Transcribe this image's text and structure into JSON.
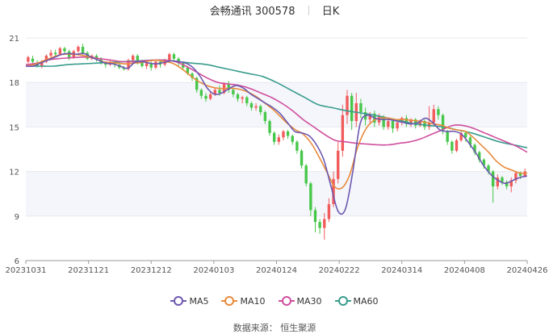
{
  "header": {
    "stock_title": "会畅通讯 300578",
    "period_label": "日K"
  },
  "footer": {
    "source": "数据来源：  恒生聚源"
  },
  "chart_data": {
    "type": "candlestick",
    "y_ticks": [
      6,
      9,
      12,
      15,
      18,
      21
    ],
    "ylim": [
      6,
      21
    ],
    "x_ticks": [
      "20231031",
      "20231121",
      "20231212",
      "20240103",
      "20240124",
      "20240222",
      "20240314",
      "20240408",
      "20240426"
    ],
    "grid": "horizontal",
    "up_color": "#f15b5b",
    "down_color": "#47c74a",
    "legend_placement": "bottom-center",
    "series": [
      {
        "name": "MA5",
        "color": "#6d58b0",
        "values": [
          19.1,
          19.1,
          19.3,
          19.5,
          19.7,
          19.9,
          19.95,
          19.9,
          19.95,
          19.7,
          19.5,
          19.3,
          19.25,
          19.1,
          18.95,
          19.35,
          19.4,
          19.3,
          19.25,
          19.35,
          19.45,
          19.4,
          19.3,
          19.0,
          18.4,
          17.6,
          17.2,
          17.3,
          17.6,
          17.8,
          17.6,
          17.2,
          16.9,
          16.6,
          16.3,
          15.9,
          15.3,
          14.7,
          14.6,
          14.4,
          13.8,
          12.8,
          11.0,
          9.3,
          9.5,
          12.0,
          15.2,
          15.8,
          15.6,
          15.5,
          15.5,
          15.4,
          15.3,
          15.2,
          15.3,
          15.6,
          15.3,
          14.8,
          14.7,
          14.7,
          14.5,
          13.9,
          13.2,
          12.4,
          11.8,
          11.4,
          11.2,
          11.4,
          11.6,
          11.7
        ]
      },
      {
        "name": "MA10",
        "color": "#e88b3c",
        "values": [
          19.1,
          19.2,
          19.4,
          19.6,
          19.8,
          19.9,
          19.9,
          19.85,
          19.75,
          19.6,
          19.4,
          19.35,
          19.3,
          19.25,
          19.3,
          19.35,
          19.45,
          19.5,
          19.4,
          19.3,
          19.0,
          18.6,
          18.2,
          17.9,
          17.7,
          17.6,
          17.6,
          17.6,
          17.5,
          17.3,
          17.0,
          16.6,
          16.2,
          15.7,
          15.2,
          14.8,
          14.5,
          13.9,
          13.0,
          12.0,
          11.0,
          10.9,
          11.8,
          13.6,
          14.8,
          15.4,
          15.6,
          15.6,
          15.5,
          15.5,
          15.45,
          15.4,
          15.3,
          15.2,
          15.1,
          14.9,
          14.8,
          14.7,
          14.3,
          13.8,
          13.3,
          12.7,
          12.3,
          12.1,
          11.9,
          11.9
        ]
      },
      {
        "name": "MA30",
        "color": "#d04e9e",
        "values": [
          19.2,
          19.3,
          19.5,
          19.6,
          19.65,
          19.7,
          19.7,
          19.6,
          19.5,
          19.4,
          19.4,
          19.45,
          19.5,
          19.5,
          19.4,
          19.1,
          18.7,
          18.3,
          18.0,
          17.9,
          17.8,
          17.6,
          17.3,
          17.0,
          16.6,
          16.1,
          15.5,
          15.0,
          14.5,
          14.1,
          14.0,
          13.9,
          13.85,
          13.8,
          13.8,
          13.9,
          14.0,
          14.2,
          14.5,
          14.8,
          15.1,
          15.1,
          14.9,
          14.6,
          14.3,
          14.0,
          13.7,
          13.3
        ]
      },
      {
        "name": "MA60",
        "color": "#3a9c8e",
        "values": [
          19.1,
          19.1,
          19.1,
          19.2,
          19.25,
          19.3,
          19.35,
          19.4,
          19.45,
          19.5,
          19.5,
          19.4,
          19.3,
          19.2,
          19.0,
          18.8,
          18.6,
          18.4,
          18.0,
          17.5,
          17.0,
          16.5,
          16.3,
          16.1,
          15.95,
          15.8,
          15.6,
          15.4,
          15.2,
          15.1,
          15.0,
          14.8,
          14.6,
          14.3,
          14.0,
          13.8,
          13.6
        ]
      }
    ],
    "candles": [
      [
        19.4,
        19.7,
        19.3,
        19.8
      ],
      [
        19.6,
        19.4,
        19.3,
        19.8
      ],
      [
        19.3,
        19.1,
        19.0,
        19.5
      ],
      [
        19.1,
        19.4,
        18.95,
        19.5
      ],
      [
        19.4,
        19.8,
        19.3,
        19.9
      ],
      [
        19.8,
        20.0,
        19.6,
        20.2
      ],
      [
        20.0,
        19.9,
        19.7,
        20.2
      ],
      [
        19.9,
        20.3,
        19.8,
        20.4
      ],
      [
        20.3,
        20.1,
        19.9,
        20.4
      ],
      [
        20.1,
        19.7,
        19.5,
        20.2
      ],
      [
        19.7,
        20.1,
        19.6,
        20.2
      ],
      [
        20.1,
        20.4,
        20.0,
        20.5
      ],
      [
        20.4,
        20.0,
        19.8,
        20.6
      ],
      [
        20.0,
        19.6,
        19.5,
        20.1
      ],
      [
        19.6,
        19.8,
        19.5,
        19.9
      ],
      [
        19.8,
        19.6,
        19.4,
        19.9
      ],
      [
        19.6,
        19.3,
        19.2,
        19.7
      ],
      [
        19.3,
        19.2,
        19.0,
        19.4
      ],
      [
        19.2,
        19.4,
        19.1,
        19.5
      ],
      [
        19.4,
        19.2,
        19.0,
        19.5
      ],
      [
        19.2,
        19.0,
        18.9,
        19.3
      ],
      [
        19.0,
        18.9,
        18.8,
        19.1
      ],
      [
        18.9,
        19.5,
        18.8,
        19.6
      ],
      [
        19.5,
        19.8,
        19.3,
        19.9
      ],
      [
        19.8,
        19.4,
        19.2,
        19.9
      ],
      [
        19.4,
        19.1,
        19.0,
        19.5
      ],
      [
        19.1,
        19.3,
        18.9,
        19.4
      ],
      [
        19.3,
        19.0,
        18.8,
        19.4
      ],
      [
        19.0,
        19.4,
        18.9,
        19.5
      ],
      [
        19.4,
        19.2,
        19.0,
        19.5
      ],
      [
        19.2,
        19.5,
        19.1,
        19.6
      ],
      [
        19.5,
        19.9,
        19.4,
        20.0
      ],
      [
        19.9,
        19.6,
        19.4,
        20.0
      ],
      [
        19.6,
        19.3,
        19.1,
        19.7
      ],
      [
        19.3,
        19.0,
        18.9,
        19.4
      ],
      [
        19.0,
        18.6,
        18.5,
        19.1
      ],
      [
        18.6,
        18.3,
        18.1,
        18.7
      ],
      [
        18.3,
        17.5,
        17.3,
        18.4
      ],
      [
        17.5,
        17.1,
        16.9,
        17.6
      ],
      [
        17.1,
        16.9,
        16.7,
        17.3
      ],
      [
        16.9,
        17.2,
        16.8,
        17.4
      ],
      [
        17.2,
        17.5,
        17.1,
        17.6
      ],
      [
        17.5,
        17.3,
        17.1,
        17.8
      ],
      [
        17.3,
        17.9,
        17.2,
        18.0
      ],
      [
        17.9,
        17.5,
        17.3,
        18.1
      ],
      [
        17.5,
        17.2,
        17.0,
        17.6
      ],
      [
        17.2,
        16.9,
        16.7,
        17.3
      ],
      [
        16.9,
        17.0,
        16.6,
        17.1
      ],
      [
        17.0,
        16.6,
        16.4,
        17.1
      ],
      [
        16.6,
        16.3,
        16.1,
        16.7
      ],
      [
        16.3,
        16.4,
        16.1,
        16.6
      ],
      [
        16.4,
        16.0,
        15.8,
        16.5
      ],
      [
        16.0,
        15.4,
        15.2,
        16.1
      ],
      [
        15.4,
        14.6,
        14.4,
        15.5
      ],
      [
        14.6,
        14.0,
        13.8,
        14.7
      ],
      [
        14.0,
        14.3,
        13.8,
        14.5
      ],
      [
        14.3,
        14.7,
        14.1,
        14.8
      ],
      [
        14.7,
        14.4,
        14.2,
        14.8
      ],
      [
        14.4,
        14.0,
        13.8,
        14.5
      ],
      [
        14.0,
        13.4,
        13.2,
        14.1
      ],
      [
        13.4,
        12.4,
        12.2,
        13.5
      ],
      [
        12.4,
        11.2,
        11.0,
        12.5
      ],
      [
        11.2,
        9.4,
        9.0,
        11.3
      ],
      [
        9.4,
        8.6,
        7.9,
        9.6
      ],
      [
        8.6,
        8.2,
        7.8,
        8.8
      ],
      [
        8.2,
        8.8,
        7.4,
        9.2
      ],
      [
        8.8,
        9.8,
        8.6,
        10.2
      ],
      [
        9.8,
        11.5,
        9.6,
        12.0
      ],
      [
        11.5,
        13.4,
        11.2,
        14.0
      ],
      [
        13.4,
        15.8,
        13.0,
        16.5
      ],
      [
        15.8,
        17.1,
        15.2,
        17.5
      ],
      [
        17.1,
        15.4,
        14.8,
        17.3
      ],
      [
        15.4,
        16.6,
        15.0,
        17.3
      ],
      [
        16.6,
        16.0,
        15.6,
        16.9
      ],
      [
        16.0,
        15.5,
        15.1,
        16.3
      ],
      [
        15.5,
        15.9,
        15.2,
        16.0
      ],
      [
        15.9,
        15.3,
        15.0,
        16.1
      ],
      [
        15.3,
        15.7,
        15.1,
        15.9
      ],
      [
        15.7,
        15.0,
        14.8,
        15.8
      ],
      [
        15.0,
        15.4,
        14.8,
        15.6
      ],
      [
        15.4,
        14.9,
        14.6,
        15.5
      ],
      [
        14.9,
        15.3,
        14.7,
        15.4
      ],
      [
        15.3,
        15.6,
        15.1,
        15.7
      ],
      [
        15.6,
        15.2,
        15.0,
        15.8
      ],
      [
        15.2,
        15.5,
        15.0,
        15.6
      ],
      [
        15.5,
        15.1,
        14.9,
        15.6
      ],
      [
        15.1,
        15.4,
        15.0,
        15.5
      ],
      [
        15.4,
        15.0,
        14.8,
        15.5
      ],
      [
        15.0,
        15.3,
        14.8,
        16.4
      ],
      [
        15.3,
        16.2,
        15.1,
        16.5
      ],
      [
        16.2,
        15.8,
        15.5,
        16.4
      ],
      [
        15.8,
        14.7,
        14.5,
        15.9
      ],
      [
        14.7,
        14.0,
        13.8,
        14.8
      ],
      [
        14.0,
        13.4,
        13.2,
        14.1
      ],
      [
        13.4,
        14.1,
        13.3,
        14.2
      ],
      [
        14.1,
        14.6,
        14.0,
        14.7
      ],
      [
        14.6,
        14.3,
        14.0,
        14.7
      ],
      [
        14.3,
        13.8,
        13.6,
        14.4
      ],
      [
        13.8,
        13.3,
        13.1,
        13.9
      ],
      [
        13.3,
        12.8,
        12.6,
        13.4
      ],
      [
        12.8,
        12.4,
        12.2,
        12.9
      ],
      [
        12.4,
        12.0,
        11.8,
        12.5
      ],
      [
        12.0,
        11.0,
        9.9,
        12.1
      ],
      [
        11.0,
        11.6,
        10.8,
        11.8
      ],
      [
        11.6,
        11.3,
        11.1,
        11.7
      ],
      [
        11.3,
        11.0,
        10.8,
        11.4
      ],
      [
        11.0,
        11.4,
        10.6,
        11.6
      ],
      [
        11.4,
        11.9,
        11.2,
        12.0
      ],
      [
        11.9,
        11.7,
        11.5,
        12.0
      ],
      [
        11.7,
        12.0,
        11.6,
        12.2
      ]
    ]
  }
}
